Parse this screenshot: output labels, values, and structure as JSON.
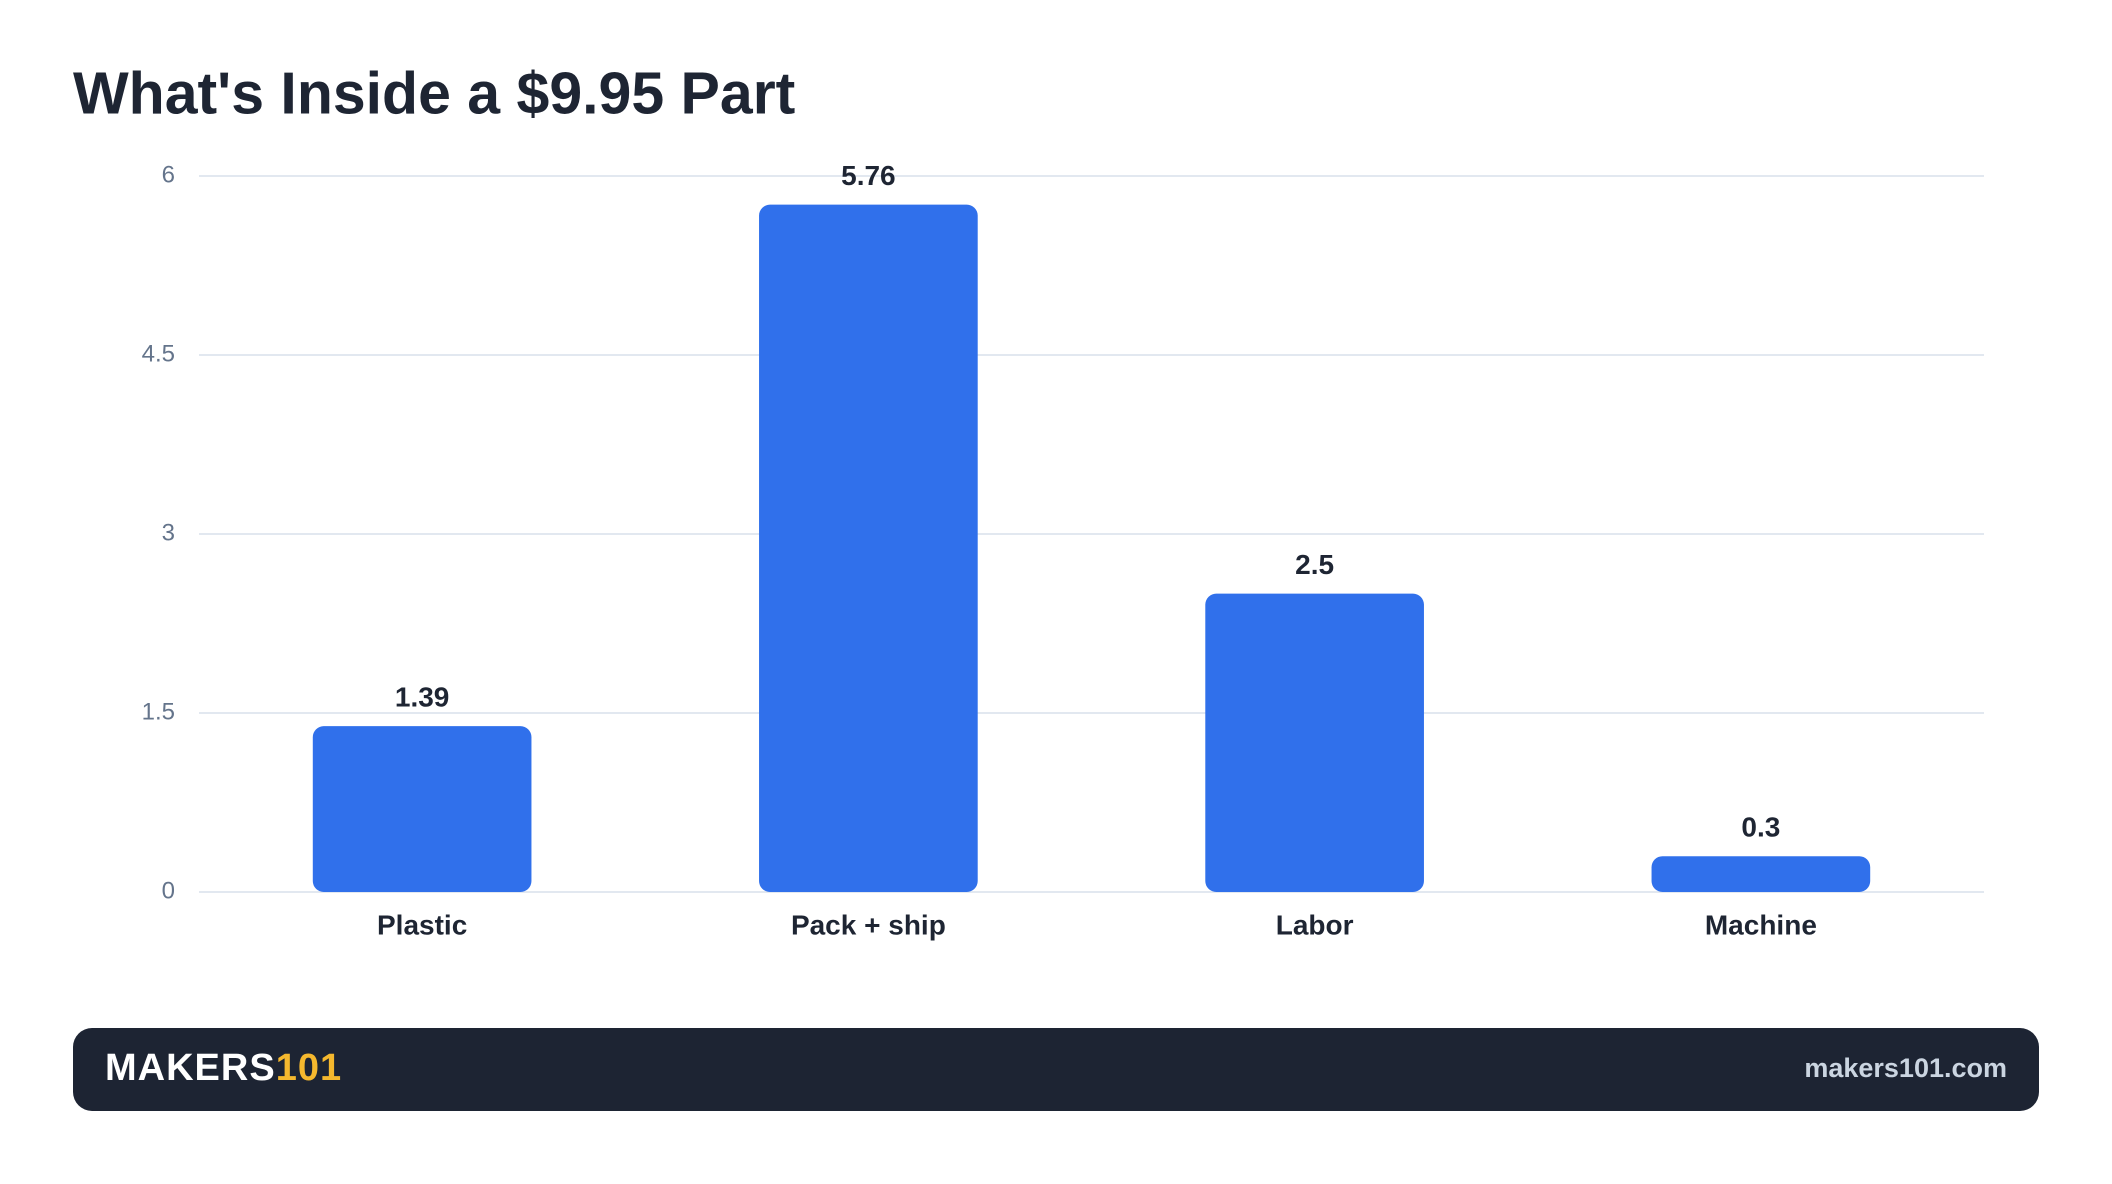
{
  "chart_data": {
    "type": "bar",
    "title": "What's Inside a $9.95 Part",
    "categories": [
      "Plastic",
      "Pack + ship",
      "Labor",
      "Machine"
    ],
    "values": [
      1.39,
      5.76,
      2.5,
      0.3
    ],
    "color": "#3070eb",
    "ylim": [
      0,
      6
    ],
    "yticks": [
      0,
      1.5,
      3,
      4.5,
      6
    ],
    "grid": true
  },
  "footer": {
    "brand": "MAKERS",
    "brand_accent": "101",
    "url": "makers101.com"
  }
}
